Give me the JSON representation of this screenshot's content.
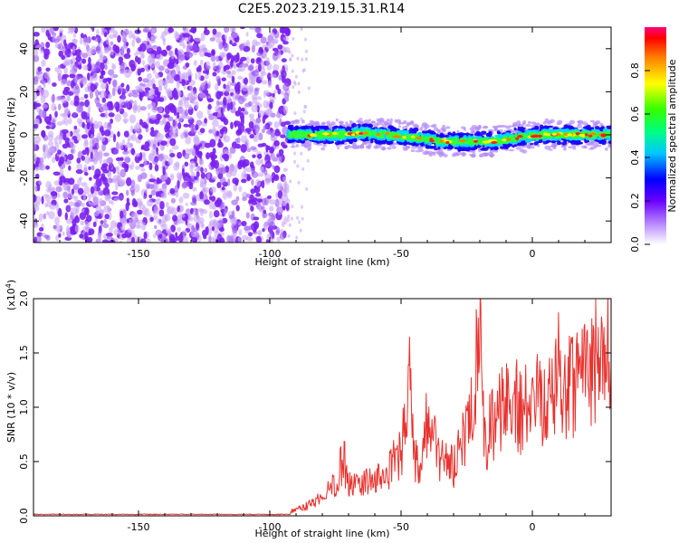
{
  "title": "C2E5.2023.219.15.31.R14",
  "colors": {
    "snr_line": "#e8322e",
    "spec_purple": "#7a1ff2",
    "spec_light": "#c9a6f7"
  },
  "chart_data": [
    {
      "type": "heatmap",
      "xlabel": "Height of straight line (km)",
      "ylabel": "Frequency (Hz)",
      "xlim": [
        -190,
        30
      ],
      "ylim": [
        -50,
        50
      ],
      "xticks": [
        -150,
        -100,
        -50,
        0
      ],
      "xtick_labels": [
        "-150",
        "-100",
        "-50",
        "0"
      ],
      "yticks": [
        -40,
        -20,
        0,
        20,
        40
      ],
      "ytick_labels": [
        "-40",
        "-20",
        "0",
        "20",
        "40"
      ],
      "colorbar": {
        "label": "Normalized spectral amplitude",
        "range": [
          0,
          1
        ],
        "ticks": [
          0.0,
          0.2,
          0.4,
          0.6,
          0.8
        ],
        "tick_labels": [
          "0.0",
          "0.2",
          "0.4",
          "0.6",
          "0.8"
        ]
      },
      "noise_region_x": [
        -190,
        -93
      ],
      "signal_band": {
        "x": [
          -93,
          -85,
          -75,
          -65,
          -55,
          -45,
          -35,
          -25,
          -15,
          -5,
          5,
          15,
          25,
          30
        ],
        "center_hz": [
          0,
          0,
          0,
          1,
          0,
          -1,
          -3,
          -3,
          -3,
          -1,
          0,
          0,
          0,
          0
        ]
      }
    },
    {
      "type": "line",
      "xlabel": "Height of straight line (km)",
      "ylabel": "SNR (10 * v/v)",
      "multiplier_label": "(x10",
      "multiplier_exp": "4",
      "multiplier_close": ")",
      "xlim": [
        -190,
        30
      ],
      "ylim": [
        0,
        2.0
      ],
      "xticks": [
        -150,
        -100,
        -50,
        0
      ],
      "xtick_labels": [
        "-150",
        "-100",
        "-50",
        "0"
      ],
      "yticks": [
        0,
        0.5,
        1.0,
        1.5,
        2.0
      ],
      "ytick_labels": [
        "0.0",
        "0.5",
        "1.0",
        "1.5",
        "2.0"
      ],
      "series": [
        {
          "x": [
            -190,
            -150,
            -100,
            -90,
            -85,
            -80,
            -75,
            -72,
            -70,
            -65,
            -60,
            -55,
            -50,
            -47,
            -45,
            -42,
            -40,
            -35,
            -30,
            -25,
            -22,
            -20,
            -18,
            -15,
            -10,
            -5,
            0,
            5,
            10,
            15,
            20,
            25,
            30
          ],
          "y": [
            0.01,
            0.01,
            0.02,
            0.05,
            0.1,
            0.18,
            0.3,
            0.55,
            0.28,
            0.3,
            0.32,
            0.4,
            0.6,
            1.25,
            0.5,
            0.45,
            0.9,
            0.5,
            0.45,
            0.75,
            1.0,
            2.0,
            0.6,
            0.9,
            1.05,
            1.0,
            1.05,
            1.2,
            1.3,
            1.25,
            1.4,
            1.45,
            1.52
          ]
        }
      ]
    }
  ]
}
